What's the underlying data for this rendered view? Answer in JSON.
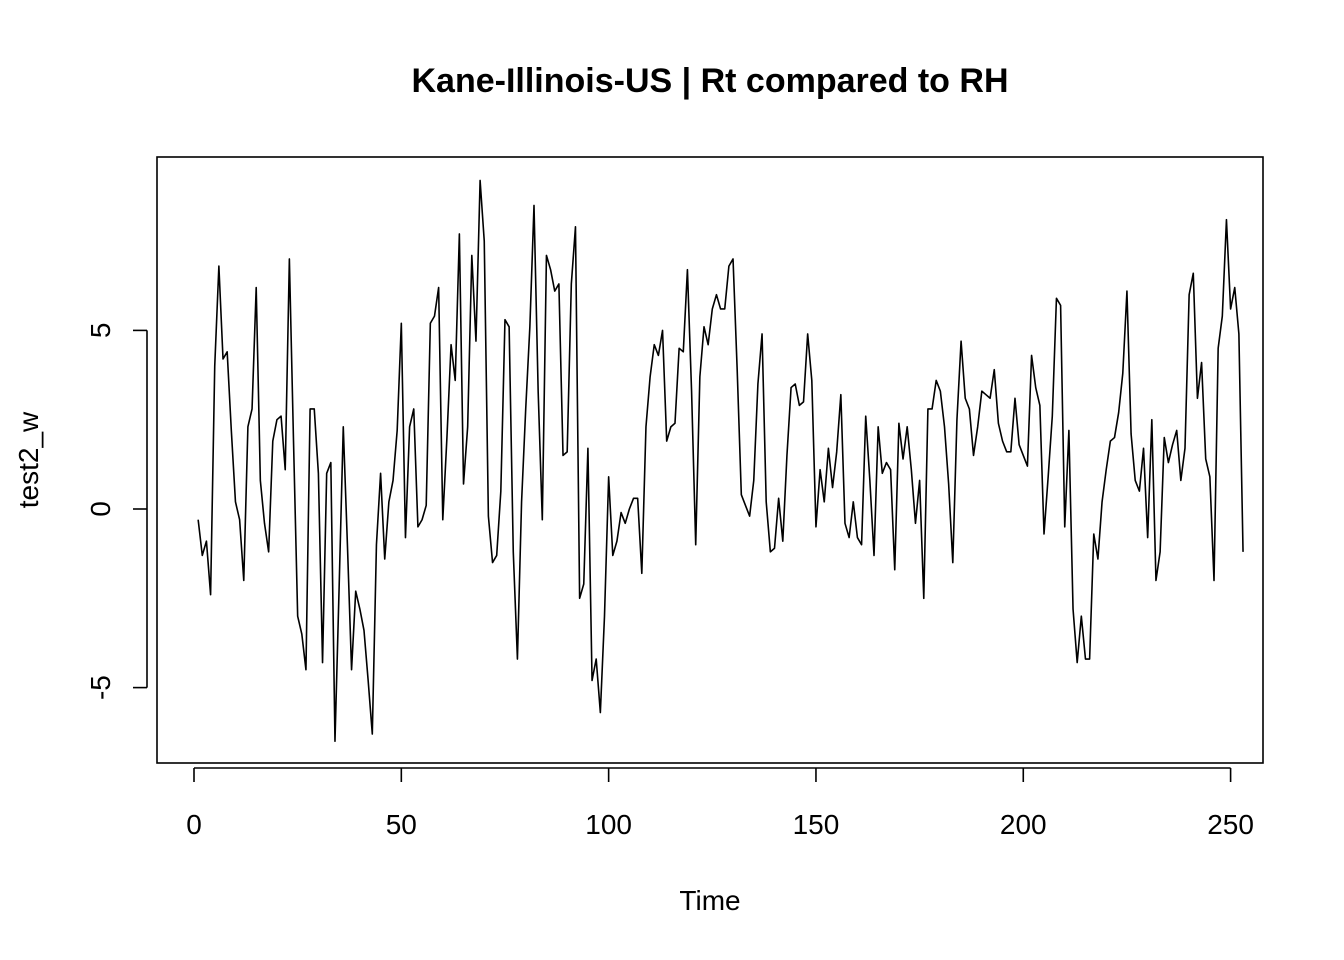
{
  "chart_data": {
    "type": "line",
    "title": "Kane-Illinois-US | Rt compared to RH",
    "xlabel": "Time",
    "ylabel": "test2_w",
    "xlim": [
      0,
      248
    ],
    "ylim": [
      -7,
      9.5
    ],
    "x_ticks": [
      0,
      50,
      100,
      150,
      200,
      250
    ],
    "y_ticks": [
      -5,
      0,
      5
    ],
    "x_tick_labels": [
      "0",
      "50",
      "100",
      "150",
      "200",
      "250"
    ],
    "y_tick_labels": [
      "-5",
      "0",
      "5"
    ],
    "grid": false,
    "series": [
      {
        "values": [
          -0.3,
          -1.3,
          -0.9,
          -2.4,
          4,
          6.8,
          4.2,
          4.4,
          2.2,
          0.2,
          -0.3,
          -2,
          2.3,
          2.8,
          6.2,
          0.8,
          -0.4,
          -1.2,
          1.9,
          2.5,
          2.6,
          1.1,
          7,
          1.9,
          -3,
          -3.5,
          -4.5,
          2.8,
          2.8,
          1,
          -4.3,
          1,
          1.3,
          -6.5,
          -2.2,
          2.3,
          -1,
          -4.5,
          -2.3,
          -2.8,
          -3.4,
          -4.8,
          -6.3,
          -1,
          1,
          -1.4,
          0.2,
          0.8,
          2.2,
          5.2,
          -0.8,
          2.3,
          2.8,
          -0.5,
          -0.3,
          0.1,
          5.2,
          5.4,
          6.2,
          -0.3,
          2,
          4.6,
          3.6,
          7.7,
          0.7,
          2.3,
          7.1,
          4.7,
          9.2,
          7.5,
          -0.2,
          -1.5,
          -1.3,
          0.5,
          5.3,
          5.1,
          -1.2,
          -4.2,
          0.2,
          2.8,
          5.1,
          8.5,
          3.3,
          -0.3,
          7.1,
          6.7,
          6.1,
          6.3,
          1.5,
          1.6,
          6.3,
          7.9,
          -2.5,
          -2.1,
          1.7,
          -4.8,
          -4.2,
          -5.7,
          -3,
          0.9,
          -1.3,
          -0.9,
          -0.1,
          -0.4,
          0,
          0.3,
          0.3,
          -1.8,
          2.3,
          3.7,
          4.6,
          4.3,
          5,
          1.9,
          2.3,
          2.4,
          4.5,
          4.4,
          6.7,
          3.3,
          -1,
          3.7,
          5.1,
          4.6,
          5.6,
          6,
          5.6,
          5.6,
          6.8,
          7,
          3.9,
          0.4,
          0.1,
          -0.2,
          0.8,
          3.5,
          4.9,
          0.2,
          -1.2,
          -1.1,
          0.3,
          -0.9,
          1.5,
          3.4,
          3.5,
          2.9,
          3,
          4.9,
          3.6,
          -0.5,
          1.1,
          0.2,
          1.7,
          0.6,
          1.6,
          3.2,
          -0.4,
          -0.8,
          0.2,
          -0.8,
          -1,
          2.6,
          0.8,
          -1.3,
          2.3,
          1,
          1.3,
          1.1,
          -1.7,
          2.4,
          1.4,
          2.3,
          1.1,
          -0.4,
          0.8,
          -2.5,
          2.8,
          2.8,
          3.6,
          3.3,
          2.3,
          0.7,
          -1.5,
          2.5,
          4.7,
          3.1,
          2.8,
          1.5,
          2.3,
          3.3,
          3.2,
          3.1,
          3.9,
          2.4,
          1.9,
          1.6,
          1.6,
          3.1,
          1.8,
          1.5,
          1.2,
          4.3,
          3.4,
          2.9,
          -0.7,
          0.9,
          2.6,
          5.9,
          5.7,
          -0.5,
          2.2,
          -2.8,
          -4.3,
          -3,
          -4.2,
          -4.2,
          -0.7,
          -1.4,
          0.2,
          1.1,
          1.9,
          2,
          2.7,
          3.8,
          6.1,
          2.1,
          0.8,
          0.5,
          1.7,
          -0.8,
          2.5,
          -2,
          -1.2,
          2,
          1.3,
          1.8,
          2.2,
          0.8,
          1.7,
          6,
          6.6,
          3.1,
          4.1,
          1.4,
          0.9,
          -2,
          4.5,
          5.4,
          8.1,
          5.6,
          6.2,
          4.9,
          -1.2
        ]
      }
    ]
  }
}
